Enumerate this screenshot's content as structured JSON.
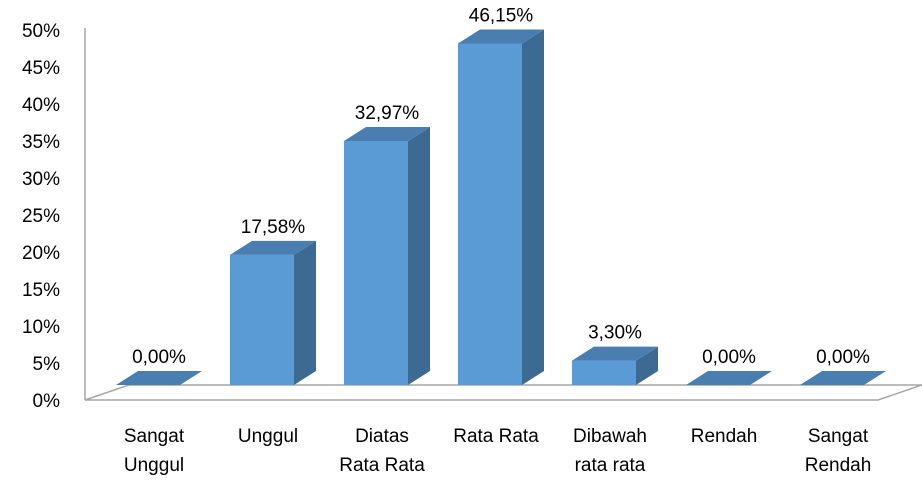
{
  "chart_data": {
    "type": "bar",
    "style": "3d-column",
    "categories": [
      [
        "Sangat",
        "Unggul"
      ],
      [
        "Unggul"
      ],
      [
        "Diatas",
        "Rata Rata"
      ],
      [
        "Rata Rata"
      ],
      [
        "Dibawah",
        "rata rata"
      ],
      [
        "Rendah"
      ],
      [
        "Sangat",
        "Rendah"
      ]
    ],
    "values": [
      0.0,
      17.58,
      32.97,
      46.15,
      3.3,
      0.0,
      0.0
    ],
    "data_labels": [
      "0,00%",
      "17,58%",
      "32,97%",
      "46,15%",
      "3,30%",
      "0,00%",
      "0,00%"
    ],
    "title": "",
    "xlabel": "",
    "ylabel": "",
    "ylim": [
      0,
      50
    ],
    "y_ticks": [
      "0%",
      "5%",
      "10%",
      "15%",
      "20%",
      "25%",
      "30%",
      "35%",
      "40%",
      "45%",
      "50%"
    ],
    "grid": false,
    "legend": "none",
    "colors": {
      "bar_front": "#5B9BD5",
      "bar_side": "#3D6A92",
      "bar_top": "#4A7EB0",
      "axis": "#A6A6A6"
    }
  }
}
